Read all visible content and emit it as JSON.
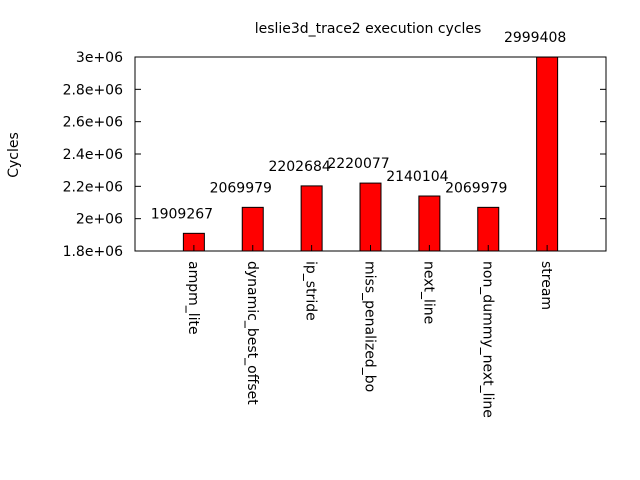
{
  "chart_data": {
    "type": "bar",
    "title": "leslie3d_trace2 execution cycles",
    "xlabel": "",
    "ylabel": "Cycles",
    "categories": [
      "ampm_lite",
      "dynamic_best_offset",
      "ip_stride",
      "miss_penalized_bo",
      "next_line",
      "non_dummy_next_line",
      "stream"
    ],
    "values": [
      1909267,
      2069979,
      2202684,
      2220077,
      2140104,
      2069979,
      2999408
    ],
    "data_labels": [
      "1909267",
      "2069979",
      "2202684",
      "2220077",
      "2140104",
      "2069979",
      "2999408"
    ],
    "ylim": [
      1800000,
      3000000
    ],
    "yticks": [
      1800000,
      2000000,
      2200000,
      2400000,
      2600000,
      2800000,
      3000000
    ],
    "ytick_labels": [
      "1.8e+06",
      "2e+06",
      "2.2e+06",
      "2.4e+06",
      "2.6e+06",
      "2.8e+06",
      "3e+06"
    ],
    "bar_color": "#ff0000",
    "bar_edge_color": "#000000",
    "grid": false,
    "legend": "none"
  }
}
